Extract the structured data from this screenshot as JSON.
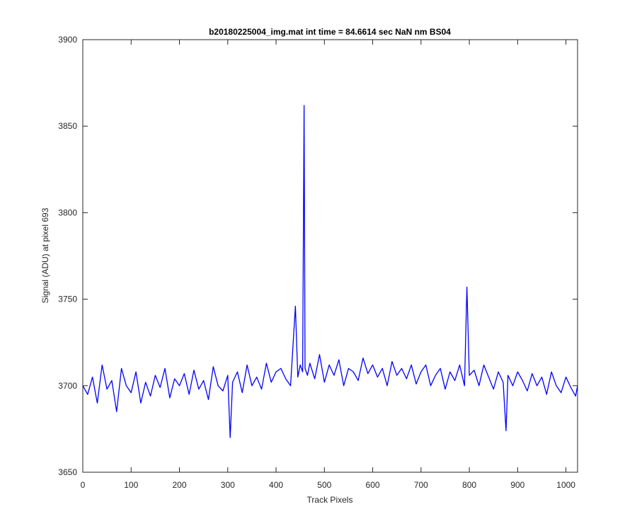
{
  "chart_data": {
    "type": "line",
    "title": "b20180225004_img.mat int time = 84.6614 sec  NaN nm BS04",
    "xlabel": "Track Pixels",
    "ylabel": "Signal (ADU) at pixel 693",
    "xlim": [
      0,
      1024
    ],
    "ylim": [
      3650,
      3900
    ],
    "xticks": [
      0,
      100,
      200,
      300,
      400,
      500,
      600,
      700,
      800,
      900,
      1000
    ],
    "yticks": [
      3650,
      3700,
      3750,
      3800,
      3850,
      3900
    ],
    "xtick_labels": [
      "0",
      "100",
      "200",
      "300",
      "400",
      "500",
      "600",
      "700",
      "800",
      "900",
      "1000"
    ],
    "ytick_labels": [
      "3650",
      "3700",
      "3750",
      "3800",
      "3850",
      "3900"
    ],
    "grid": false,
    "series": [
      {
        "color": "#0000ff",
        "x": [
          0,
          10,
          20,
          30,
          40,
          50,
          60,
          70,
          80,
          90,
          100,
          110,
          120,
          130,
          140,
          150,
          160,
          170,
          180,
          190,
          200,
          210,
          220,
          230,
          240,
          250,
          260,
          270,
          280,
          290,
          300,
          305,
          310,
          320,
          330,
          340,
          350,
          360,
          370,
          380,
          390,
          400,
          410,
          420,
          430,
          440,
          445,
          450,
          455,
          458,
          460,
          465,
          470,
          480,
          490,
          500,
          510,
          520,
          530,
          540,
          550,
          560,
          570,
          580,
          590,
          600,
          610,
          620,
          630,
          640,
          650,
          660,
          670,
          680,
          690,
          700,
          710,
          720,
          730,
          740,
          750,
          760,
          770,
          780,
          790,
          795,
          800,
          810,
          820,
          830,
          840,
          850,
          860,
          870,
          876,
          880,
          890,
          900,
          910,
          920,
          930,
          940,
          950,
          960,
          970,
          980,
          990,
          1000,
          1010,
          1020,
          1024
        ],
        "y": [
          3700,
          3695,
          3705,
          3690,
          3712,
          3698,
          3703,
          3685,
          3710,
          3700,
          3696,
          3708,
          3690,
          3702,
          3694,
          3706,
          3699,
          3710,
          3693,
          3704,
          3700,
          3707,
          3695,
          3709,
          3698,
          3703,
          3692,
          3711,
          3700,
          3697,
          3706,
          3670,
          3702,
          3708,
          3696,
          3712,
          3700,
          3705,
          3698,
          3713,
          3702,
          3708,
          3710,
          3704,
          3700,
          3746,
          3705,
          3712,
          3708,
          3862,
          3710,
          3706,
          3713,
          3704,
          3718,
          3702,
          3712,
          3706,
          3715,
          3700,
          3710,
          3708,
          3703,
          3716,
          3707,
          3712,
          3705,
          3710,
          3700,
          3714,
          3706,
          3710,
          3704,
          3712,
          3701,
          3708,
          3712,
          3700,
          3706,
          3710,
          3698,
          3708,
          3703,
          3712,
          3700,
          3757,
          3706,
          3709,
          3700,
          3712,
          3705,
          3698,
          3708,
          3702,
          3674,
          3706,
          3700,
          3708,
          3703,
          3697,
          3707,
          3700,
          3705,
          3695,
          3708,
          3700,
          3696,
          3705,
          3699,
          3694,
          3700
        ]
      }
    ]
  }
}
